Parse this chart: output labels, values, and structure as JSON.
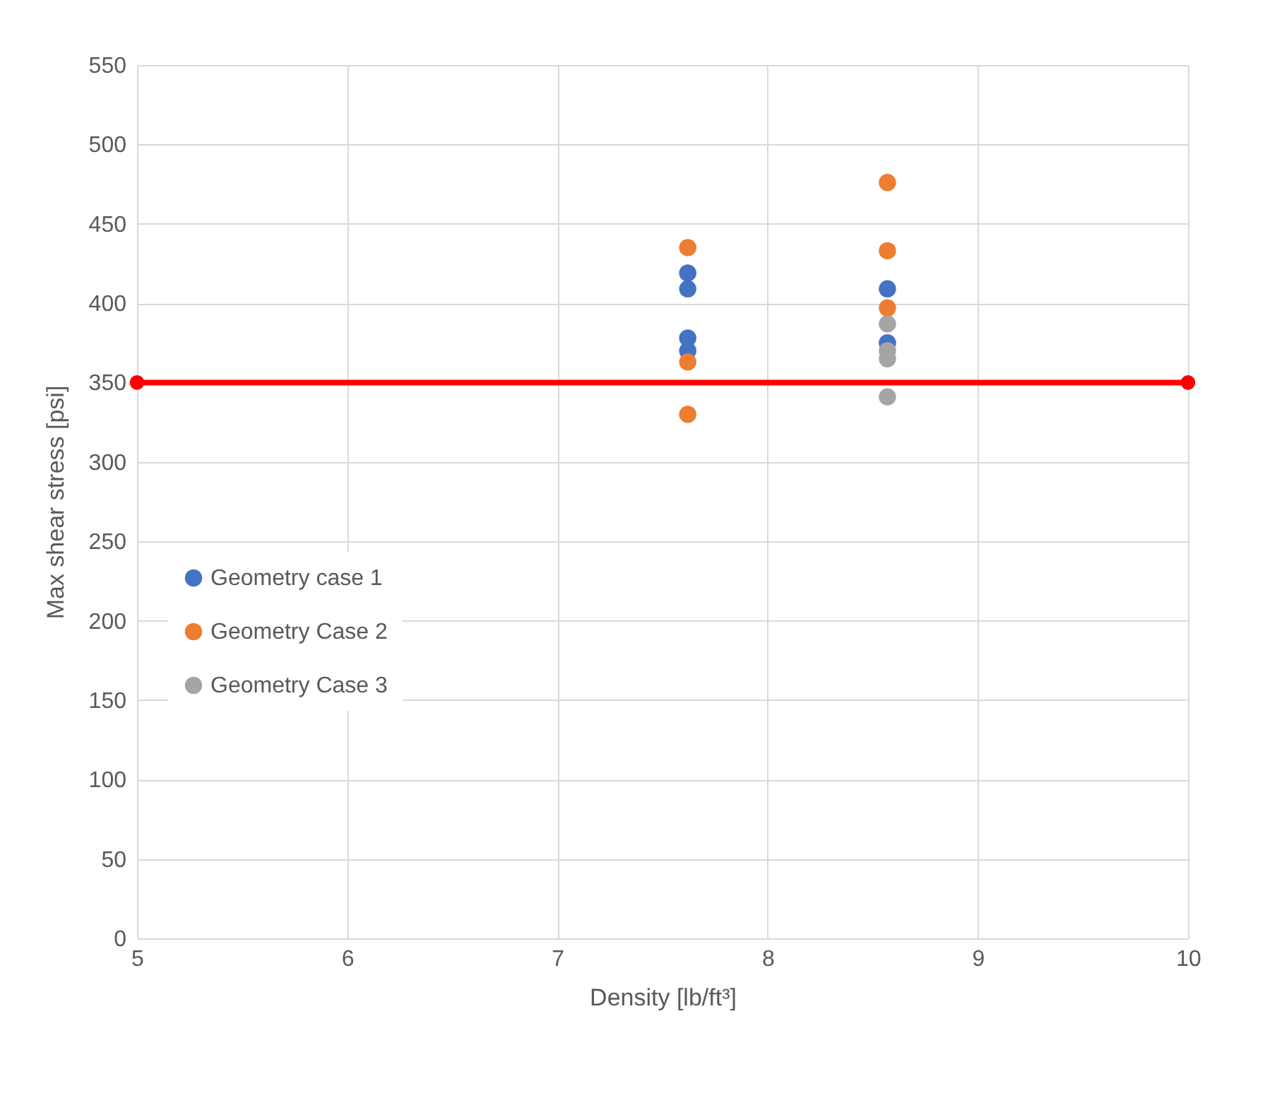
{
  "chart_data": {
    "type": "scatter",
    "xlabel": "Density [lb/ft³]",
    "ylabel": "Max shear stress [psi]",
    "xlim": [
      5,
      10
    ],
    "xticks": [
      5,
      6,
      7,
      8,
      9,
      10
    ],
    "ylim": [
      0,
      550
    ],
    "yticks": [
      0,
      50,
      100,
      150,
      200,
      250,
      300,
      350,
      400,
      450,
      500,
      550
    ],
    "grid": true,
    "legend": "left",
    "marker": "circle",
    "series": [
      {
        "name": "Geometry case 1",
        "color": "#4472c4",
        "x": [
          7.62,
          7.62,
          7.62,
          7.62,
          8.57,
          8.57
        ],
        "values": [
          419,
          409,
          378,
          370,
          409,
          375
        ]
      },
      {
        "name": "Geometry Case 2",
        "color": "#ed7d31",
        "x": [
          7.62,
          7.62,
          7.62,
          8.57,
          8.57,
          8.57
        ],
        "values": [
          435,
          363,
          330,
          476,
          433,
          397
        ]
      },
      {
        "name": "Geometry Case 3",
        "color": "#a5a5a5",
        "x": [
          8.57,
          8.57,
          8.57,
          8.57
        ],
        "values": [
          387,
          370,
          365,
          341
        ]
      },
      {
        "type": "line",
        "color": "#ff0000",
        "x": [
          5,
          10
        ],
        "values": [
          350,
          350
        ]
      }
    ]
  }
}
